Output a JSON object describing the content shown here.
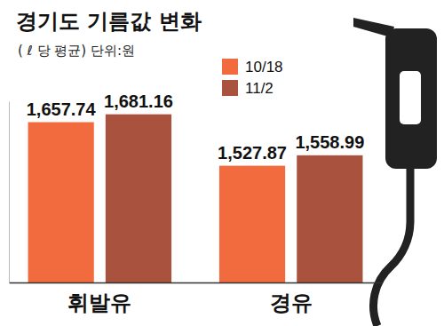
{
  "chart_data": {
    "type": "bar",
    "title": "경기도 기름값 변화",
    "subtitle": "( ℓ 당 평균) 단위:원",
    "categories": [
      "휘발유",
      "경유"
    ],
    "series": [
      {
        "name": "10/18",
        "color": "#f26b3f",
        "values": [
          1657.74,
          1527.87
        ],
        "value_labels": [
          "1,657.74",
          "1,527.87"
        ]
      },
      {
        "name": "11/2",
        "color": "#a9533f",
        "values": [
          1681.16,
          1558.99
        ],
        "value_labels": [
          "1,681.16",
          "1,558.99"
        ]
      }
    ],
    "ylim": [
      1180,
      1720
    ],
    "data_labels": true,
    "legend": "upper center",
    "tick_labels": "x",
    "grid": false
  }
}
